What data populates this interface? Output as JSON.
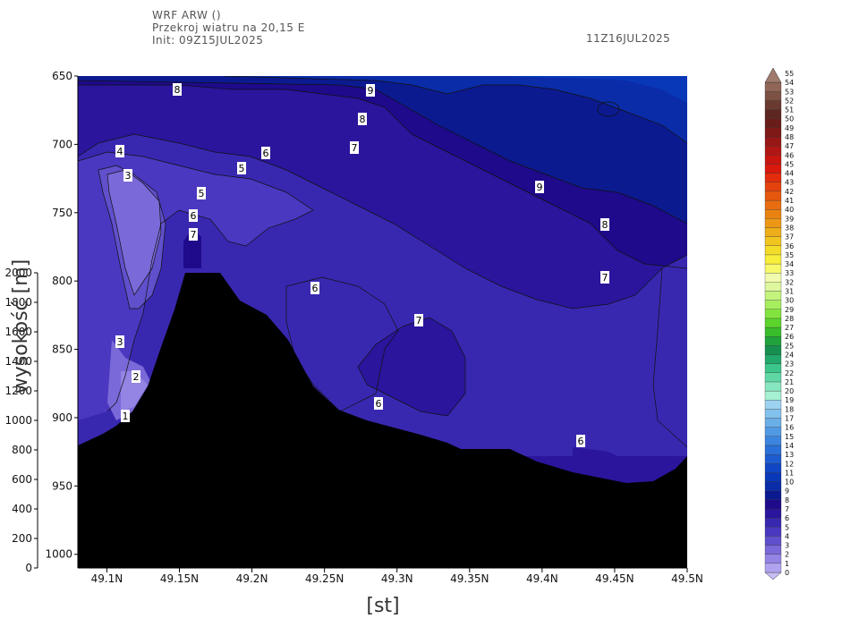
{
  "header": {
    "model": "WRF ARW ()",
    "section": "Przekroj wiatru na 20,15 E",
    "init": "Init: 09Z15JUL2025",
    "valid": "11Z16JUL2025"
  },
  "chart_data": {
    "type": "contour",
    "xlabel": "[st]",
    "ylabel": "wysokość [m]",
    "x_ticks": [
      "49.1N",
      "49.15N",
      "49.2N",
      "49.25N",
      "49.3N",
      "49.35N",
      "49.4N",
      "49.45N",
      "49.5N"
    ],
    "y_pressure_ticks": [
      "650",
      "700",
      "750",
      "800",
      "850",
      "900",
      "950",
      "1000"
    ],
    "y_height_ticks": [
      "2000",
      "1800",
      "1600",
      "1400",
      "1200",
      "1000",
      "800",
      "600",
      "400",
      "200",
      "0"
    ],
    "xlim": [
      49.08,
      49.5
    ],
    "ylim_pressure": [
      650,
      1010
    ],
    "contour_labels": [
      "8",
      "9",
      "8",
      "4",
      "6",
      "7",
      "3",
      "5",
      "9",
      "5",
      "6",
      "7",
      "8",
      "6",
      "7",
      "7",
      "3",
      "2",
      "6",
      "6",
      "1"
    ],
    "colorbar": {
      "levels": [
        "0",
        "1",
        "2",
        "3",
        "4",
        "5",
        "6",
        "7",
        "8",
        "9",
        "10",
        "11",
        "12",
        "13",
        "14",
        "15",
        "16",
        "17",
        "18",
        "19",
        "20",
        "21",
        "22",
        "23",
        "24",
        "25",
        "26",
        "27",
        "28",
        "29",
        "30",
        "31",
        "32",
        "33",
        "34",
        "35",
        "36",
        "37",
        "38",
        "39",
        "40",
        "41",
        "42",
        "43",
        "44",
        "45",
        "46",
        "47",
        "48",
        "49",
        "50",
        "51",
        "52",
        "53",
        "54",
        "55"
      ],
      "colors": [
        "#c8bcf5",
        "#b0a2ee",
        "#9484e4",
        "#7a69d8",
        "#6050cc",
        "#4a38c0",
        "#3828b0",
        "#2a159c",
        "#1e0a8a",
        "#0c1a90",
        "#0a2ca8",
        "#0838b8",
        "#1046c4",
        "#1d5ccf",
        "#2a70d8",
        "#3c85de",
        "#5299e4",
        "#6aaee8",
        "#83c1ed",
        "#9dd2f1",
        "#a6f0d4",
        "#86e6bf",
        "#5fd8a6",
        "#3cc68c",
        "#22a86b",
        "#17904f",
        "#1fa33a",
        "#39bd2b",
        "#5bd42b",
        "#83e33e",
        "#a6ee5e",
        "#c4f47e",
        "#def79e",
        "#f0fbae",
        "#f8f86a",
        "#f6ee3a",
        "#f3dc2a",
        "#f0c51f",
        "#eead1a",
        "#ec9816",
        "#ea8212",
        "#e86d10",
        "#e6570e",
        "#e4420d",
        "#e22c0c",
        "#d8190c",
        "#c8150f",
        "#b01613",
        "#971716",
        "#7e1917",
        "#6a1d18",
        "#5e2620",
        "#6a3a30",
        "#7d5144",
        "#906658",
        "#a07a6c"
      ]
    }
  }
}
